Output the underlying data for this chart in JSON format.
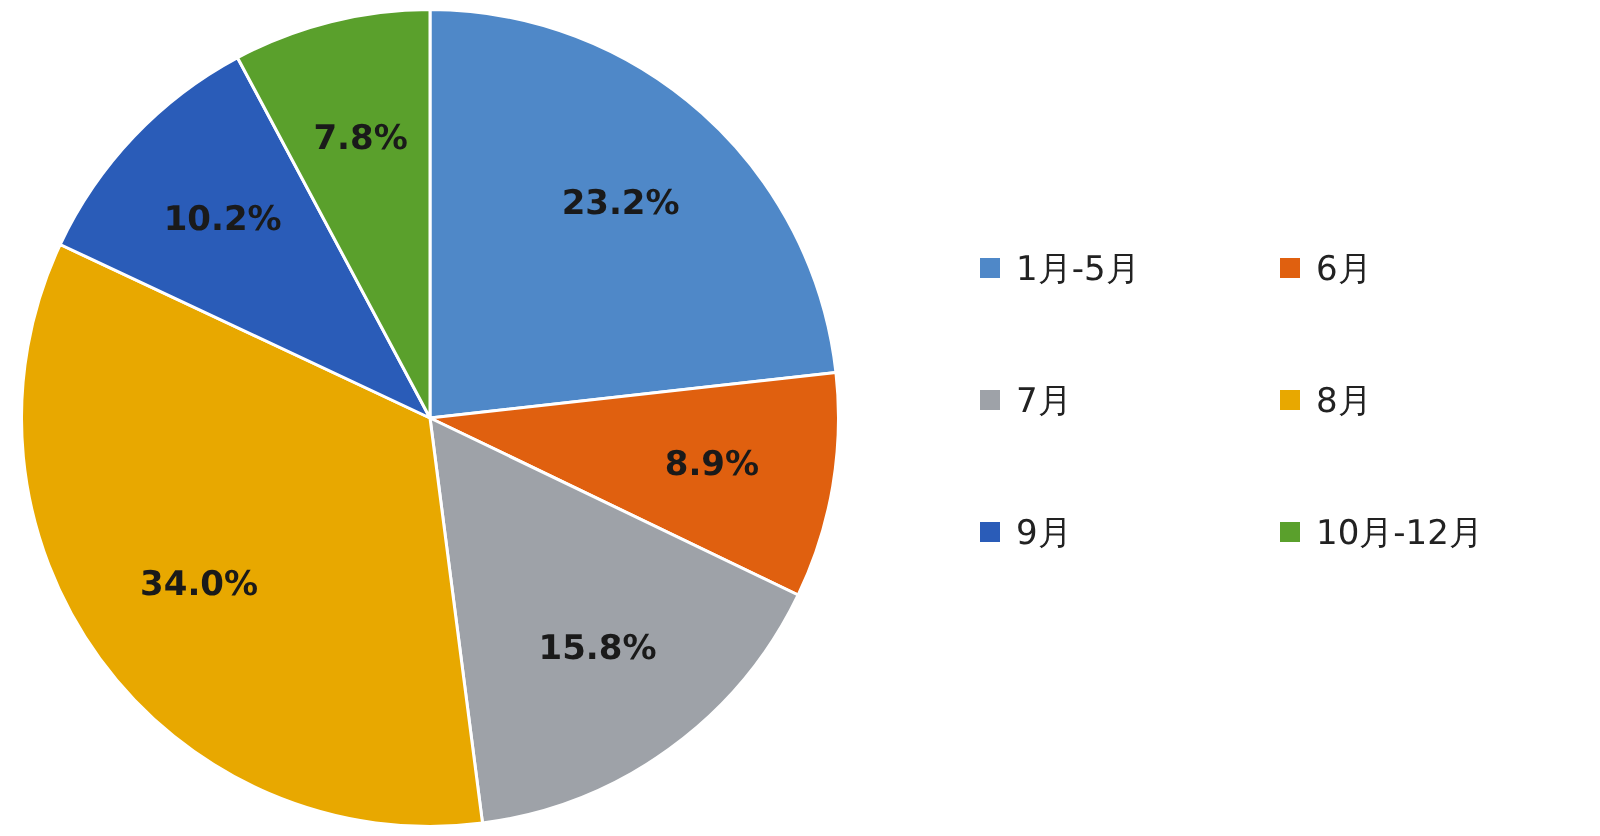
{
  "chart_data": {
    "type": "pie",
    "categories": [
      "1月-5月",
      "6月",
      "7月",
      "8月",
      "9月",
      "10月-12月"
    ],
    "values": [
      23.2,
      8.9,
      15.8,
      34.0,
      10.2,
      7.8
    ],
    "colors": [
      "#4f88c8",
      "#e0600f",
      "#9ea2a8",
      "#e8a800",
      "#2a5cb8",
      "#5aa02c"
    ],
    "value_labels": [
      "23.2%",
      "8.9%",
      "15.8%",
      "34.0%",
      "10.2%",
      "7.8%"
    ],
    "legend": "right"
  }
}
